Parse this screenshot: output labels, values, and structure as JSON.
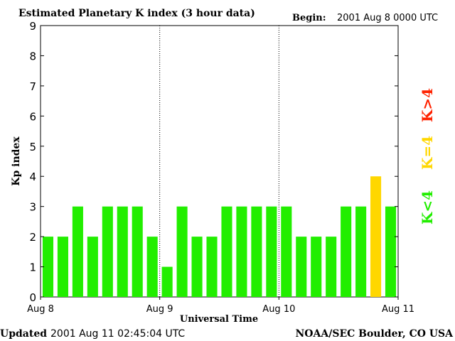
{
  "header": {
    "title": "Estimated Planetary K index (3 hour data)",
    "begin_label": "Begin:",
    "begin_value": "2001 Aug 8 0000 UTC"
  },
  "footer": {
    "updated_label": "Updated",
    "updated_value": "2001 Aug 11 02:45:04 UTC",
    "source": "NOAA/SEC Boulder, CO USA"
  },
  "legend": {
    "above": "K>4",
    "equal": "K=4",
    "below": "K<4"
  },
  "colors": {
    "below": "#22ee00",
    "equal": "#ffd700",
    "above": "#ff2200",
    "axis": "#000000"
  },
  "chart_data": {
    "type": "bar",
    "title": "Estimated Planetary K index (3 hour data)",
    "xlabel": "Universal Time",
    "ylabel": "Kp index",
    "ylim": [
      0,
      9
    ],
    "yticks": [
      0,
      1,
      2,
      3,
      4,
      5,
      6,
      7,
      8,
      9
    ],
    "xticks": [
      "Aug 8",
      "Aug 9",
      "Aug 10",
      "Aug 11"
    ],
    "day_separators": [
      "Aug 9",
      "Aug 10"
    ],
    "categories": [
      "Aug 8 00",
      "Aug 8 03",
      "Aug 8 06",
      "Aug 8 09",
      "Aug 8 12",
      "Aug 8 15",
      "Aug 8 18",
      "Aug 8 21",
      "Aug 9 00",
      "Aug 9 03",
      "Aug 9 06",
      "Aug 9 09",
      "Aug 9 12",
      "Aug 9 15",
      "Aug 9 18",
      "Aug 9 21",
      "Aug 10 00",
      "Aug 10 03",
      "Aug 10 06",
      "Aug 10 09",
      "Aug 10 12",
      "Aug 10 15",
      "Aug 10 18",
      "Aug 10 21"
    ],
    "values": [
      2,
      2,
      3,
      2,
      3,
      3,
      3,
      2,
      1,
      3,
      2,
      2,
      3,
      3,
      3,
      3,
      3,
      2,
      2,
      2,
      3,
      3,
      4,
      3
    ],
    "grid": false
  }
}
